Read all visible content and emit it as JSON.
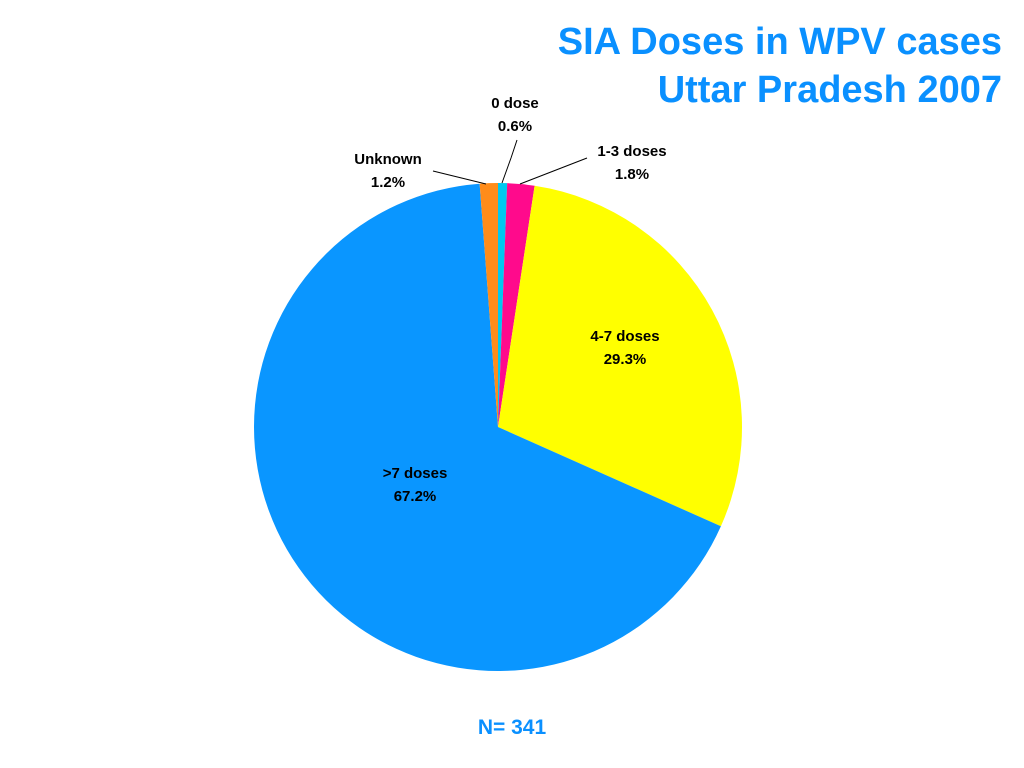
{
  "chart_data": {
    "type": "pie",
    "title": [
      "SIA Doses in WPV cases",
      "Uttar Pradesh 2007"
    ],
    "slices": [
      {
        "label": "0 dose",
        "value": 0.6,
        "value_label": "0.6%",
        "color": "#00c8f0"
      },
      {
        "label": "1-3 doses",
        "value": 1.8,
        "value_label": "1.8%",
        "color": "#ff0a8c"
      },
      {
        "label": "4-7 doses",
        "value": 29.3,
        "value_label": "29.3%",
        "color": "#ffff00"
      },
      {
        "label": ">7 doses",
        "value": 67.2,
        "value_label": "67.2%",
        "color": "#0a96ff"
      },
      {
        "label": "Unknown",
        "value": 1.2,
        "value_label": "1.2%",
        "color": "#ff8c1a"
      }
    ],
    "note": "N= 341"
  }
}
